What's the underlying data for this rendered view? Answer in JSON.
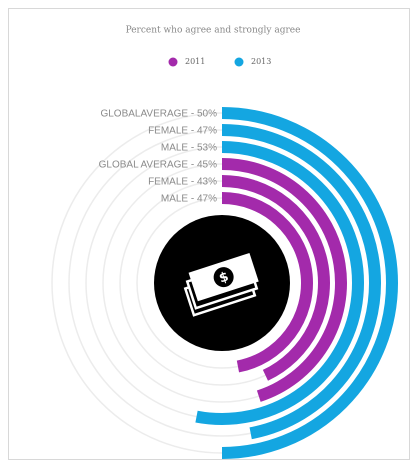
{
  "chart_data": {
    "type": "radial_bar",
    "title": "Percent who agree and strongly agree",
    "ylim": [
      0,
      100
    ],
    "series": [
      {
        "name": "2013",
        "color": "#14a6e1",
        "values": [
          50,
          47,
          53
        ],
        "value_labels": [
          "GLOBALAVERAGE - 50%",
          "FEMALE - 47%",
          "MALE - 53%"
        ]
      },
      {
        "name": "2011",
        "color": "#a32aab",
        "values": [
          45,
          43,
          47
        ],
        "value_labels": [
          "GLOBAL AVERAGE - 45%",
          "FEMALE - 43%",
          "MALE - 47%"
        ]
      }
    ]
  }
}
